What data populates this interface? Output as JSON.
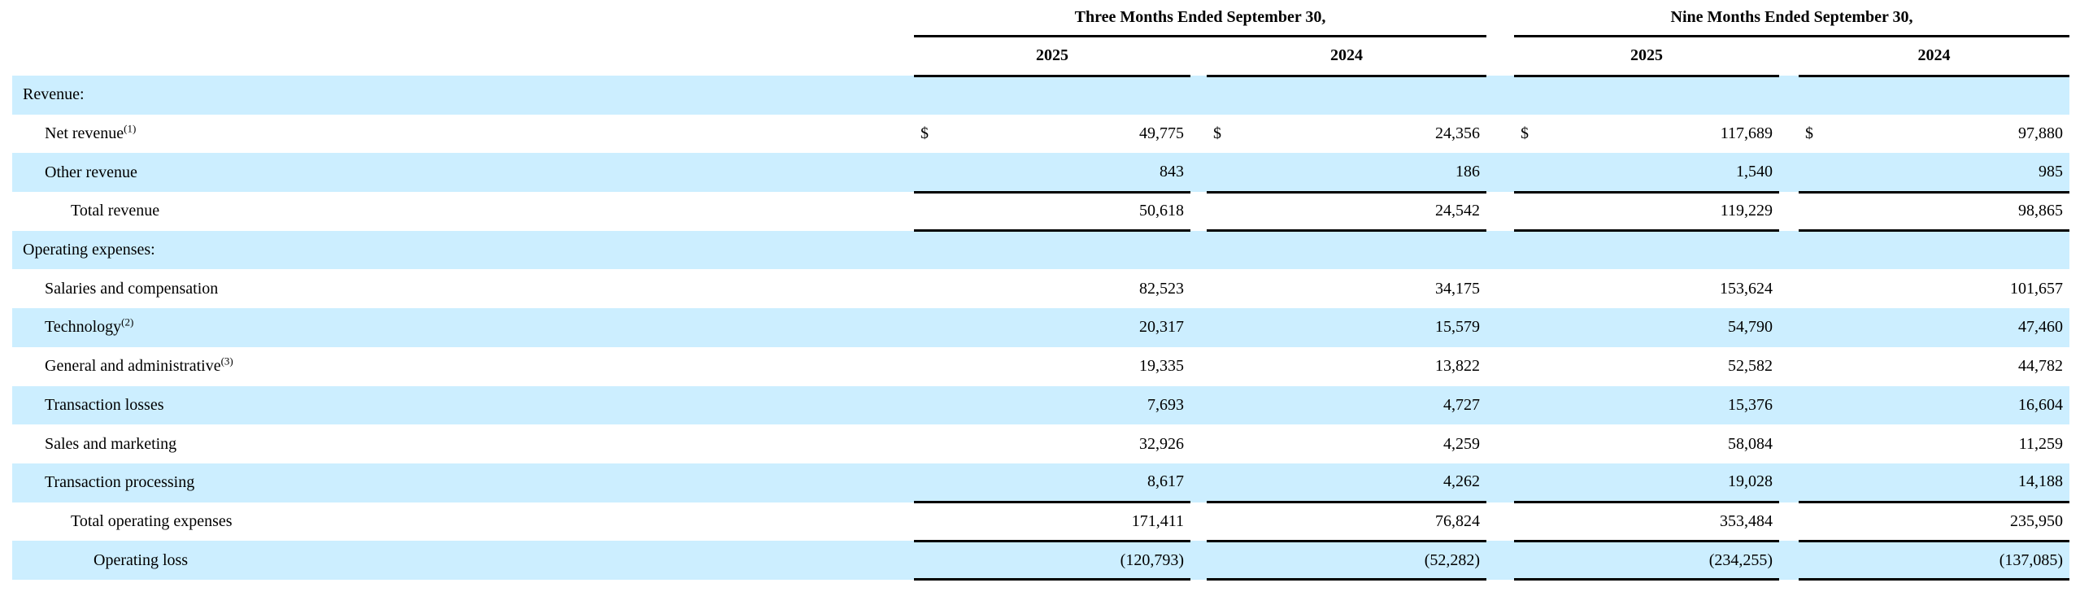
{
  "page": {
    "background_color": "#ffffff",
    "highlight_color": "#cceeff",
    "text_color": "#000000",
    "rule_color": "#000000"
  },
  "table": {
    "column_groups": [
      {
        "title": "Three Months Ended September 30,",
        "years": [
          "2025",
          "2024"
        ]
      },
      {
        "title": "Nine Months Ended September 30,",
        "years": [
          "2025",
          "2024"
        ]
      }
    ],
    "rows": [
      {
        "label": "Revenue:",
        "sup": "",
        "indent": 0,
        "highlight": true,
        "dollar": false,
        "values": [
          "",
          "",
          "",
          ""
        ],
        "border_bottom": false
      },
      {
        "label": "Net revenue",
        "sup": "(1)",
        "indent": 1,
        "highlight": false,
        "dollar": true,
        "values": [
          "49,775",
          "24,356",
          "117,689",
          "97,880"
        ],
        "border_bottom": false
      },
      {
        "label": "Other revenue",
        "sup": "",
        "indent": 1,
        "highlight": true,
        "dollar": false,
        "values": [
          "843",
          "186",
          "1,540",
          "985"
        ],
        "border_bottom": true
      },
      {
        "label": "Total revenue",
        "sup": "",
        "indent": 2,
        "highlight": false,
        "dollar": false,
        "values": [
          "50,618",
          "24,542",
          "119,229",
          "98,865"
        ],
        "border_bottom": true
      },
      {
        "label": "Operating expenses:",
        "sup": "",
        "indent": 0,
        "highlight": true,
        "dollar": false,
        "values": [
          "",
          "",
          "",
          ""
        ],
        "border_bottom": false
      },
      {
        "label": "Salaries and compensation",
        "sup": "",
        "indent": 1,
        "highlight": false,
        "dollar": false,
        "values": [
          "82,523",
          "34,175",
          "153,624",
          "101,657"
        ],
        "border_bottom": false
      },
      {
        "label": "Technology",
        "sup": "(2)",
        "indent": 1,
        "highlight": true,
        "dollar": false,
        "values": [
          "20,317",
          "15,579",
          "54,790",
          "47,460"
        ],
        "border_bottom": false
      },
      {
        "label": "General and administrative",
        "sup": "(3)",
        "indent": 1,
        "highlight": false,
        "dollar": false,
        "values": [
          "19,335",
          "13,822",
          "52,582",
          "44,782"
        ],
        "border_bottom": false
      },
      {
        "label": "Transaction losses",
        "sup": "",
        "indent": 1,
        "highlight": true,
        "dollar": false,
        "values": [
          "7,693",
          "4,727",
          "15,376",
          "16,604"
        ],
        "border_bottom": false
      },
      {
        "label": "Sales and marketing",
        "sup": "",
        "indent": 1,
        "highlight": false,
        "dollar": false,
        "values": [
          "32,926",
          "4,259",
          "58,084",
          "11,259"
        ],
        "border_bottom": false
      },
      {
        "label": "Transaction processing",
        "sup": "",
        "indent": 1,
        "highlight": true,
        "dollar": false,
        "values": [
          "8,617",
          "4,262",
          "19,028",
          "14,188"
        ],
        "border_bottom": true
      },
      {
        "label": "Total operating expenses",
        "sup": "",
        "indent": 2,
        "highlight": false,
        "dollar": false,
        "values": [
          "171,411",
          "76,824",
          "353,484",
          "235,950"
        ],
        "border_bottom": true
      },
      {
        "label": "Operating loss",
        "sup": "",
        "indent": 3,
        "highlight": true,
        "dollar": false,
        "values": [
          "(120,793)",
          "(52,282)",
          "(234,255)",
          "(137,085)"
        ],
        "border_bottom": true
      }
    ],
    "dollar_symbol": "$"
  }
}
